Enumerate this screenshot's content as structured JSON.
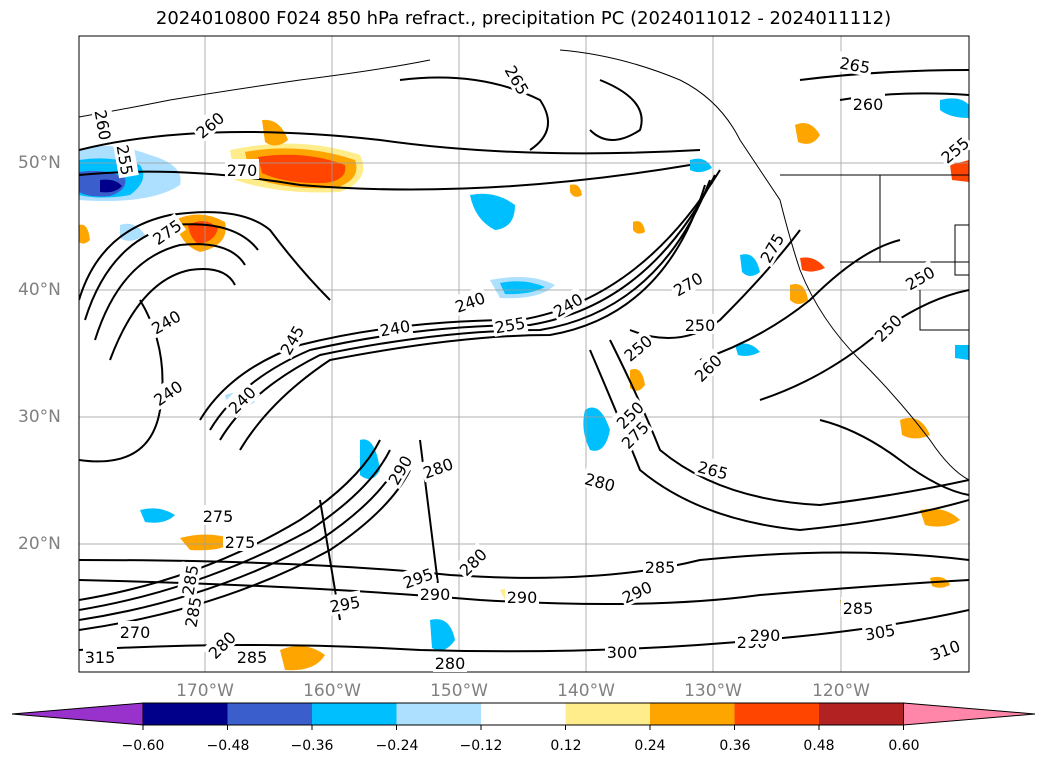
{
  "title": "2024010800 F024 850 hPa refract., precipitation PC (2024011012 - 2024011112)",
  "lat_labels": [
    "50°N",
    "40°N",
    "30°N",
    "20°N"
  ],
  "lon_labels": [
    "170°W",
    "160°W",
    "150°W",
    "140°W",
    "130°W",
    "120°W"
  ],
  "contour_labels": [
    "265",
    "265",
    "260",
    "260",
    "255",
    "260",
    "255",
    "270",
    "275",
    "240",
    "240",
    "240",
    "245",
    "240",
    "240",
    "250",
    "250",
    "250",
    "260",
    "275",
    "270",
    "250",
    "255",
    "250",
    "240",
    "275",
    "265",
    "280",
    "280",
    "290",
    "275",
    "275",
    "285",
    "285",
    "280",
    "280",
    "290",
    "290",
    "290",
    "295",
    "300",
    "285",
    "290",
    "290",
    "280",
    "285",
    "305",
    "310",
    "315",
    "295",
    "285",
    "270"
  ],
  "colorbar": {
    "ticks": [
      "−0.60",
      "−0.48",
      "−0.36",
      "−0.24",
      "−0.12",
      "0.12",
      "0.24",
      "0.36",
      "0.48",
      "0.60"
    ],
    "colors": [
      "#9932CC",
      "#00008B",
      "#3A5FCD",
      "#00BFFF",
      "#ADDFFF",
      "#FFFFFF",
      "#FFEC8B",
      "#FFA500",
      "#FF4500",
      "#B22222",
      "#FF86A8"
    ]
  },
  "legend_colors": {
    "coast": "#000000",
    "grid": "#9E9E9E",
    "contour": "#000000"
  }
}
